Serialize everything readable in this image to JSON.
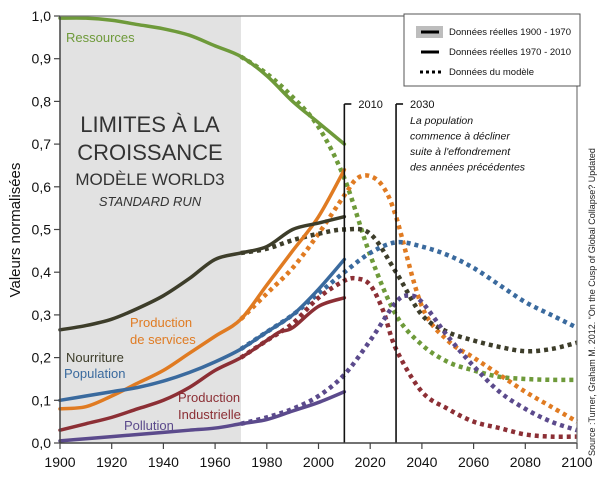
{
  "chart_data": {
    "type": "line",
    "title": "Limites à la croissance",
    "subtitle_lines": [
      "LIMITES À LA",
      "CROISSANCE",
      "MODÈLE WORLD3",
      "STANDARD RUN"
    ],
    "xlabel": "",
    "ylabel": "Valeurs normalisées",
    "xlim": [
      1900,
      2100
    ],
    "ylim": [
      0,
      1
    ],
    "xticks": [
      1900,
      1920,
      1940,
      1960,
      1980,
      2000,
      2020,
      2040,
      2060,
      2080,
      2100
    ],
    "xtick_labels": [
      "1900",
      "1920",
      "1940",
      "1960",
      "1980",
      "2000",
      "2020",
      "2040",
      "2060",
      "2080",
      "2100"
    ],
    "yticks": [
      0,
      0.1,
      0.2,
      0.3,
      0.4,
      0.5,
      0.6,
      0.7,
      0.8,
      0.9,
      1.0
    ],
    "ytick_labels": [
      "0,0",
      "0,1",
      "0,2",
      "0,3",
      "0,4",
      "0,5",
      "0,6",
      "0,7",
      "0,8",
      "0,9",
      "1,0"
    ],
    "grid": false,
    "shaded_region": {
      "x_range": [
        1900,
        1970
      ],
      "color": "#e2e2e2",
      "meaning": "Données réelles 1900 - 1970"
    },
    "legend": {
      "placement": "top-right",
      "entries": [
        {
          "label": "Données réelles 1900 - 1970",
          "style": "solid-on-gray"
        },
        {
          "label": "Données réelles 1970 - 2010",
          "style": "solid"
        },
        {
          "label": "Données du modèle",
          "style": "dotted"
        }
      ]
    },
    "vlines": [
      {
        "x": 2010,
        "label": "2010"
      },
      {
        "x": 2030,
        "label": "2030",
        "note_lines": [
          "La population",
          "commence à décliner",
          "suite à l'effondrement",
          "des années précédentes"
        ]
      }
    ],
    "series": [
      {
        "name": "Ressources",
        "color": "#6e9a3a",
        "observed": {
          "x": [
            1900,
            1910,
            1920,
            1930,
            1940,
            1950,
            1960,
            1970,
            1980,
            1990,
            2000,
            2010
          ],
          "y": [
            0.995,
            0.995,
            0.99,
            0.98,
            0.97,
            0.955,
            0.93,
            0.905,
            0.86,
            0.8,
            0.75,
            0.7
          ]
        },
        "model": {
          "x": [
            1970,
            1980,
            1990,
            2000,
            2010,
            2020,
            2030,
            2040,
            2050,
            2060,
            2070,
            2080,
            2090,
            2100
          ],
          "y": [
            0.905,
            0.865,
            0.81,
            0.74,
            0.62,
            0.44,
            0.3,
            0.23,
            0.19,
            0.17,
            0.155,
            0.15,
            0.148,
            0.148
          ]
        }
      },
      {
        "name": "Production de services",
        "color": "#e07b22",
        "observed": {
          "x": [
            1900,
            1910,
            1920,
            1930,
            1940,
            1950,
            1960,
            1970,
            1980,
            1990,
            2000,
            2010
          ],
          "y": [
            0.08,
            0.085,
            0.11,
            0.14,
            0.17,
            0.21,
            0.25,
            0.29,
            0.37,
            0.45,
            0.53,
            0.64
          ]
        },
        "model": {
          "x": [
            1970,
            1980,
            1990,
            2000,
            2010,
            2015,
            2020,
            2025,
            2030,
            2040,
            2050,
            2060,
            2070,
            2080,
            2090,
            2100
          ],
          "y": [
            0.29,
            0.35,
            0.41,
            0.49,
            0.58,
            0.62,
            0.625,
            0.6,
            0.53,
            0.32,
            0.24,
            0.2,
            0.16,
            0.12,
            0.085,
            0.05
          ]
        }
      },
      {
        "name": "Nourriture",
        "color": "#3d3d2a",
        "observed": {
          "x": [
            1900,
            1910,
            1920,
            1930,
            1940,
            1950,
            1960,
            1970,
            1980,
            1990,
            2000,
            2010
          ],
          "y": [
            0.265,
            0.275,
            0.29,
            0.315,
            0.345,
            0.385,
            0.43,
            0.445,
            0.46,
            0.5,
            0.515,
            0.53
          ]
        },
        "model": {
          "x": [
            1970,
            1980,
            1990,
            2000,
            2010,
            2020,
            2030,
            2040,
            2050,
            2060,
            2070,
            2080,
            2090,
            2100
          ],
          "y": [
            0.445,
            0.455,
            0.475,
            0.49,
            0.5,
            0.49,
            0.4,
            0.3,
            0.26,
            0.24,
            0.225,
            0.215,
            0.22,
            0.235
          ]
        }
      },
      {
        "name": "Population",
        "color": "#3a6a9e",
        "observed": {
          "x": [
            1900,
            1910,
            1920,
            1930,
            1940,
            1950,
            1960,
            1970,
            1980,
            1990,
            2000,
            2010
          ],
          "y": [
            0.1,
            0.11,
            0.12,
            0.13,
            0.145,
            0.165,
            0.19,
            0.22,
            0.26,
            0.3,
            0.36,
            0.43
          ]
        },
        "model": {
          "x": [
            1970,
            1980,
            1990,
            2000,
            2010,
            2020,
            2030,
            2040,
            2050,
            2060,
            2070,
            2080,
            2090,
            2100
          ],
          "y": [
            0.22,
            0.26,
            0.3,
            0.35,
            0.4,
            0.445,
            0.47,
            0.46,
            0.44,
            0.41,
            0.37,
            0.33,
            0.3,
            0.27
          ]
        }
      },
      {
        "name": "Production Industrielle",
        "color": "#8c2f35",
        "observed": {
          "x": [
            1900,
            1910,
            1920,
            1930,
            1940,
            1950,
            1960,
            1970,
            1980,
            1985,
            1990,
            2000,
            2010
          ],
          "y": [
            0.03,
            0.045,
            0.06,
            0.08,
            0.1,
            0.13,
            0.17,
            0.2,
            0.24,
            0.26,
            0.27,
            0.32,
            0.34
          ]
        },
        "model": {
          "x": [
            1970,
            1980,
            1990,
            2000,
            2010,
            2015,
            2020,
            2025,
            2030,
            2040,
            2050,
            2060,
            2070,
            2080,
            2090,
            2100
          ],
          "y": [
            0.2,
            0.24,
            0.28,
            0.34,
            0.38,
            0.385,
            0.37,
            0.31,
            0.22,
            0.12,
            0.08,
            0.05,
            0.035,
            0.02,
            0.015,
            0.015
          ]
        }
      },
      {
        "name": "Pollution",
        "color": "#5b4a8c",
        "observed": {
          "x": [
            1900,
            1910,
            1920,
            1930,
            1940,
            1950,
            1960,
            1970,
            1980,
            1990,
            2000,
            2010
          ],
          "y": [
            0.005,
            0.01,
            0.015,
            0.02,
            0.025,
            0.03,
            0.035,
            0.045,
            0.055,
            0.075,
            0.095,
            0.12
          ]
        },
        "model": {
          "x": [
            1970,
            1980,
            1990,
            2000,
            2010,
            2020,
            2030,
            2035,
            2040,
            2050,
            2060,
            2070,
            2080,
            2090,
            2100
          ],
          "y": [
            0.045,
            0.06,
            0.08,
            0.11,
            0.16,
            0.24,
            0.33,
            0.345,
            0.33,
            0.25,
            0.18,
            0.12,
            0.08,
            0.05,
            0.03
          ]
        }
      }
    ],
    "series_labels": [
      {
        "series": "Ressources",
        "lines": [
          "Ressources"
        ]
      },
      {
        "series": "Nourriture",
        "lines": [
          "Nourriture"
        ]
      },
      {
        "series": "Production de services",
        "lines": [
          "Production",
          "de services"
        ]
      },
      {
        "series": "Population",
        "lines": [
          "Population"
        ]
      },
      {
        "series": "Production Industrielle",
        "lines": [
          "Production",
          "Industrielle"
        ]
      },
      {
        "series": "Pollution",
        "lines": [
          "Pollution"
        ]
      }
    ],
    "source": "Source :Turner, Graham M. 2012. “On the Cusp of Global Collapse? Updated"
  }
}
